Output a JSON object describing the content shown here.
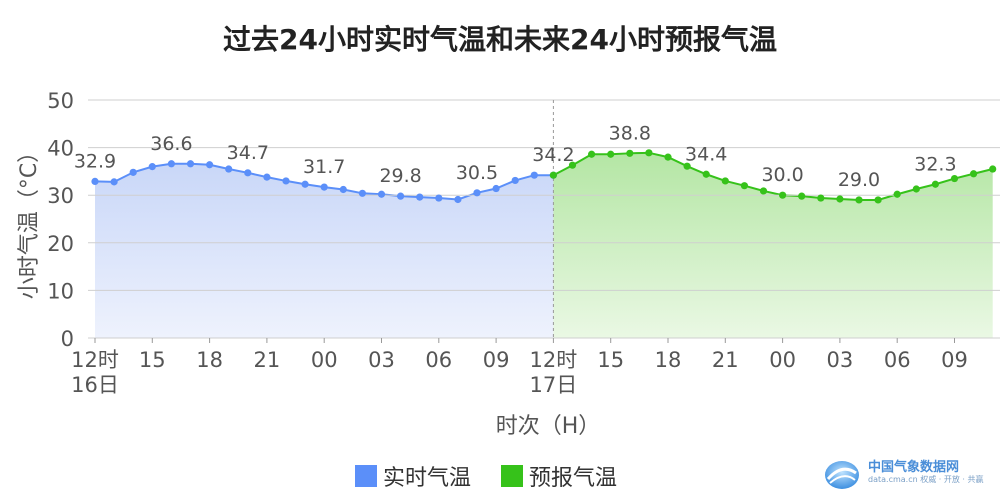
{
  "title": "过去24小时实时气温和未来24小时预报气温",
  "watermark": "中国气象数据网",
  "brand": {
    "name": "中国气象数据网",
    "subtitle": "data.cma.cn 权威 · 开放 · 共赢"
  },
  "legend": [
    {
      "label": "实时气温",
      "color": "#5b8ff9"
    },
    {
      "label": "预报气温",
      "color": "#36c21a"
    }
  ],
  "chart_data": {
    "type": "area",
    "ylabel": "小时气温（°C）",
    "xlabel": "时次（H）",
    "ylim": [
      0,
      50
    ],
    "yticks": [
      0,
      10,
      20,
      30,
      40,
      50
    ],
    "xticks": [
      {
        "hour": 0,
        "label": "12时",
        "sub": "16日"
      },
      {
        "hour": 3,
        "label": "15",
        "sub": ""
      },
      {
        "hour": 6,
        "label": "18",
        "sub": ""
      },
      {
        "hour": 9,
        "label": "21",
        "sub": ""
      },
      {
        "hour": 12,
        "label": "00",
        "sub": ""
      },
      {
        "hour": 15,
        "label": "03",
        "sub": ""
      },
      {
        "hour": 18,
        "label": "06",
        "sub": ""
      },
      {
        "hour": 21,
        "label": "09",
        "sub": ""
      },
      {
        "hour": 24,
        "label": "12时",
        "sub": "17日"
      },
      {
        "hour": 27,
        "label": "15",
        "sub": ""
      },
      {
        "hour": 30,
        "label": "18",
        "sub": ""
      },
      {
        "hour": 33,
        "label": "21",
        "sub": ""
      },
      {
        "hour": 36,
        "label": "00",
        "sub": ""
      },
      {
        "hour": 39,
        "label": "03",
        "sub": ""
      },
      {
        "hour": 42,
        "label": "06",
        "sub": ""
      },
      {
        "hour": 45,
        "label": "09",
        "sub": ""
      }
    ],
    "grid": true,
    "divider_hour": 24,
    "series": [
      {
        "name": "实时气温",
        "color": "#5b8ff9",
        "fill_top": "#c9d7f8",
        "fill_bottom": "#eef2fd",
        "x": [
          0,
          1,
          2,
          3,
          4,
          5,
          6,
          7,
          8,
          9,
          10,
          11,
          12,
          13,
          14,
          15,
          16,
          17,
          18,
          19,
          20,
          21,
          22,
          23,
          24
        ],
        "y": [
          32.9,
          32.8,
          34.8,
          36.0,
          36.6,
          36.6,
          36.4,
          35.5,
          34.7,
          33.8,
          33.0,
          32.3,
          31.7,
          31.2,
          30.4,
          30.2,
          29.8,
          29.6,
          29.4,
          29.1,
          30.5,
          31.4,
          33.1,
          34.2,
          34.2
        ],
        "labels": [
          {
            "hour": 0,
            "text": "32.9"
          },
          {
            "hour": 4,
            "text": "36.6"
          },
          {
            "hour": 8,
            "text": "34.7"
          },
          {
            "hour": 12,
            "text": "31.7"
          },
          {
            "hour": 16,
            "text": "29.8"
          },
          {
            "hour": 20,
            "text": "30.5"
          },
          {
            "hour": 24,
            "text": "34.2"
          }
        ]
      },
      {
        "name": "预报气温",
        "color": "#36c21a",
        "fill_top": "#b4e6a4",
        "fill_bottom": "#eaf8e4",
        "x": [
          24,
          25,
          26,
          27,
          28,
          29,
          30,
          31,
          32,
          33,
          34,
          35,
          36,
          37,
          38,
          39,
          40,
          41,
          42,
          43,
          44,
          45,
          46,
          47
        ],
        "y": [
          34.2,
          36.3,
          38.6,
          38.6,
          38.8,
          38.9,
          38.0,
          36.1,
          34.4,
          33.0,
          32.0,
          30.9,
          30.0,
          29.8,
          29.4,
          29.2,
          29.0,
          29.0,
          30.2,
          31.3,
          32.3,
          33.5,
          34.5,
          35.5
        ],
        "labels": [
          {
            "hour": 28,
            "text": "38.8"
          },
          {
            "hour": 32,
            "text": "34.4"
          },
          {
            "hour": 36,
            "text": "30.0"
          },
          {
            "hour": 40,
            "text": "29.0"
          },
          {
            "hour": 44,
            "text": "32.3"
          }
        ]
      }
    ]
  }
}
